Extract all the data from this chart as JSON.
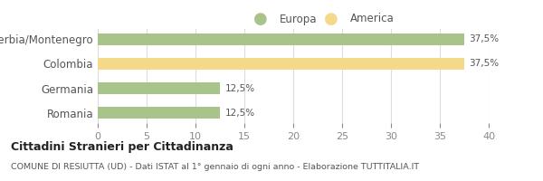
{
  "categories": [
    "Serbia/Montenegro",
    "Colombia",
    "Germania",
    "Romania"
  ],
  "values": [
    37.5,
    37.5,
    12.5,
    12.5
  ],
  "colors": [
    "#a8c48a",
    "#f5d98b",
    "#a8c48a",
    "#a8c48a"
  ],
  "bar_labels": [
    "37,5%",
    "37,5%",
    "12,5%",
    "12,5%"
  ],
  "legend": [
    {
      "label": "Europa",
      "color": "#a8c48a"
    },
    {
      "label": "America",
      "color": "#f5d98b"
    }
  ],
  "xlim": [
    0,
    40
  ],
  "xticks": [
    0,
    5,
    10,
    15,
    20,
    25,
    30,
    35,
    40
  ],
  "title_bold": "Cittadini Stranieri per Cittadinanza",
  "title_sub": "COMUNE DI RESIUTTA (UD) - Dati ISTAT al 1° gennaio di ogni anno - Elaborazione TUTTITALIA.IT",
  "background_color": "#ffffff",
  "grid_color": "#dddddd",
  "bar_height": 0.5
}
